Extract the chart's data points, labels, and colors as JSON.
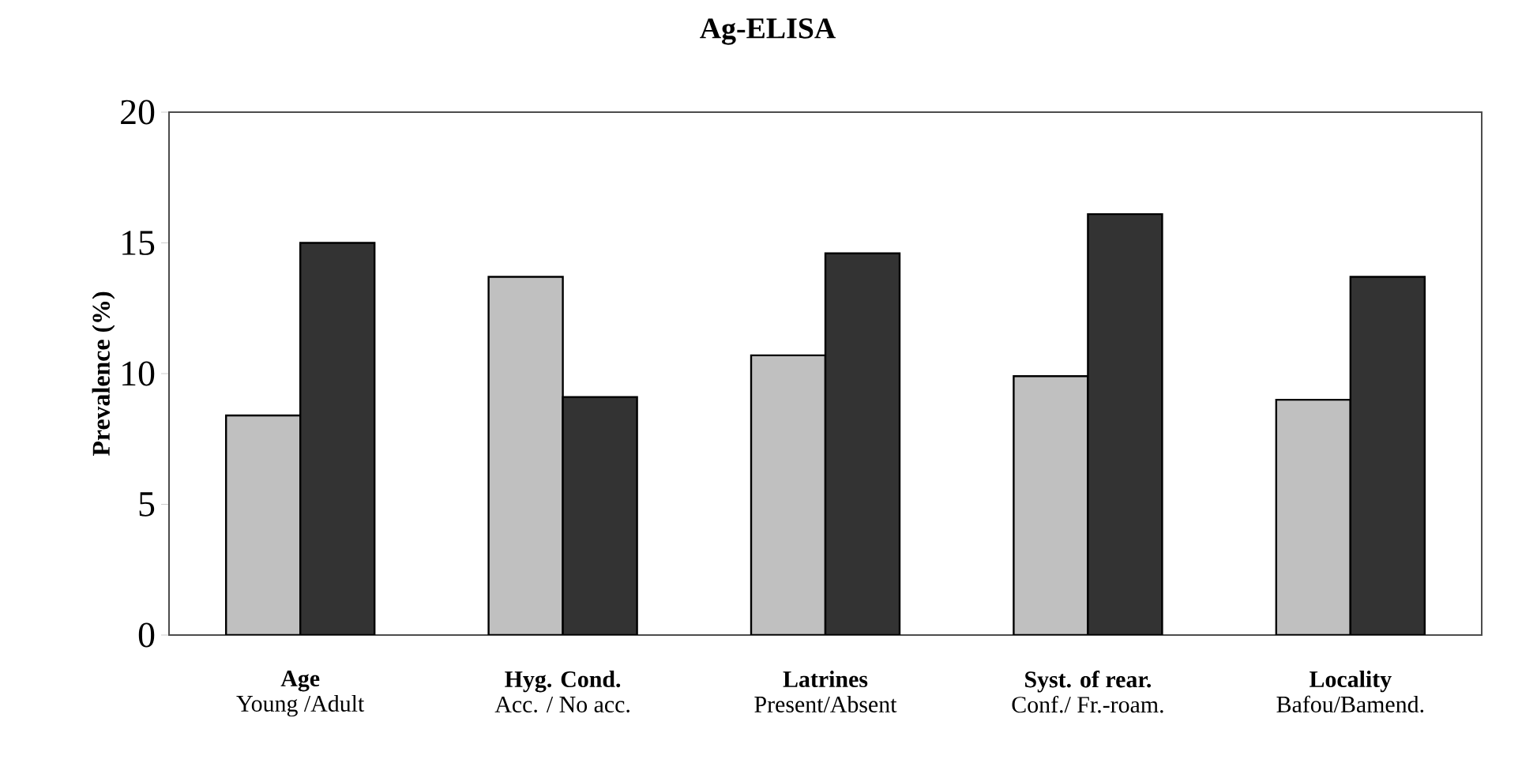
{
  "chart_data": {
    "type": "bar",
    "title": "Ag-ELISA",
    "ylabel": "Prevalence (%)",
    "categories": [
      "**Age**\nYoung /Adult",
      "**Hyg. Cond.**\nAcc. / No acc.",
      "**Latrines**\nPresent/Absent",
      "**Syst.  of rear.**\nConf./ Fr.-roam.",
      "**Locality**\nBafou/Bamend."
    ],
    "series": [
      {
        "color": "#c0c0c0",
        "values": [
          8.4,
          13.7,
          10.7,
          9.9,
          9.0
        ]
      },
      {
        "color": "#333333",
        "values": [
          15.0,
          9.1,
          14.6,
          16.1,
          13.7
        ]
      }
    ],
    "ylim": [
      0,
      20
    ],
    "yticks": [
      0,
      5,
      10,
      15,
      20
    ],
    "grid": false
  }
}
